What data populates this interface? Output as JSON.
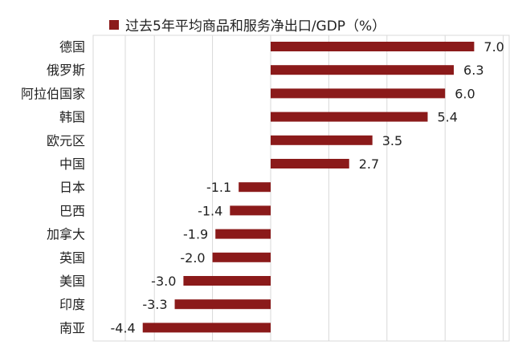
{
  "chart_data": {
    "type": "bar",
    "orientation": "horizontal",
    "title": "",
    "series": [
      {
        "name": "过去5年平均商品和服务净出口/GDP（%）",
        "values": [
          7.0,
          6.3,
          6.0,
          5.4,
          3.5,
          2.7,
          -1.1,
          -1.4,
          -1.9,
          -2.0,
          -3.0,
          -3.3,
          -4.4
        ]
      }
    ],
    "categories": [
      "德国",
      "俄罗斯",
      "阿拉伯国家",
      "韩国",
      "欧元区",
      "中国",
      "日本",
      "巴西",
      "加拿大",
      "英国",
      "美国",
      "印度",
      "南亚"
    ],
    "value_labels": [
      "7.0",
      "6.3",
      "6.0",
      "5.4",
      "3.5",
      "2.7",
      "-1.1",
      "-1.4",
      "-1.9",
      "-2.0",
      "-3.0",
      "-3.3",
      "-4.4"
    ],
    "xlim": [
      -5,
      8
    ],
    "grid": "vertical",
    "legend_position": "top-left",
    "colors": {
      "bar": "#8b1a1a",
      "grid": "#d9d9d9",
      "text": "#222222"
    }
  }
}
